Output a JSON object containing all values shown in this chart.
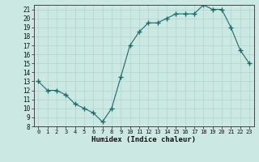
{
  "x": [
    0,
    1,
    2,
    3,
    4,
    5,
    6,
    7,
    8,
    9,
    10,
    11,
    12,
    13,
    14,
    15,
    16,
    17,
    18,
    19,
    20,
    21,
    22,
    23
  ],
  "y": [
    13,
    12,
    12,
    11.5,
    10.5,
    10,
    9.5,
    8.5,
    10,
    13.5,
    17,
    18.5,
    19.5,
    19.5,
    20,
    20.5,
    20.5,
    20.5,
    21.5,
    21,
    21,
    19,
    16.5,
    15
  ],
  "line_color": "#1a6b6b",
  "marker": "+",
  "marker_size": 4,
  "bg_color": "#cbe8e3",
  "grid_color": "#b0d4ce",
  "xlabel": "Humidex (Indice chaleur)",
  "ylim": [
    8,
    21.5
  ],
  "xlim": [
    -0.5,
    23.5
  ],
  "yticks": [
    8,
    9,
    10,
    11,
    12,
    13,
    14,
    15,
    16,
    17,
    18,
    19,
    20,
    21
  ],
  "xticks": [
    0,
    1,
    2,
    3,
    4,
    5,
    6,
    7,
    8,
    9,
    10,
    11,
    12,
    13,
    14,
    15,
    16,
    17,
    18,
    19,
    20,
    21,
    22,
    23
  ]
}
